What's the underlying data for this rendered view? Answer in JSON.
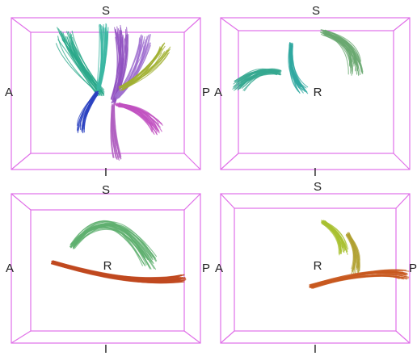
{
  "panels": [
    {
      "top": "S",
      "left": "A",
      "right": "P",
      "bottom": "I"
    },
    {
      "top": "S",
      "left": "A",
      "center": "R",
      "bottom": "I"
    },
    {
      "top": "S",
      "left": "A",
      "center": "R",
      "right": "P",
      "bottom": "I"
    },
    {
      "top": "S",
      "left": "A",
      "center": "R",
      "right": "P",
      "bottom": "I"
    }
  ]
}
